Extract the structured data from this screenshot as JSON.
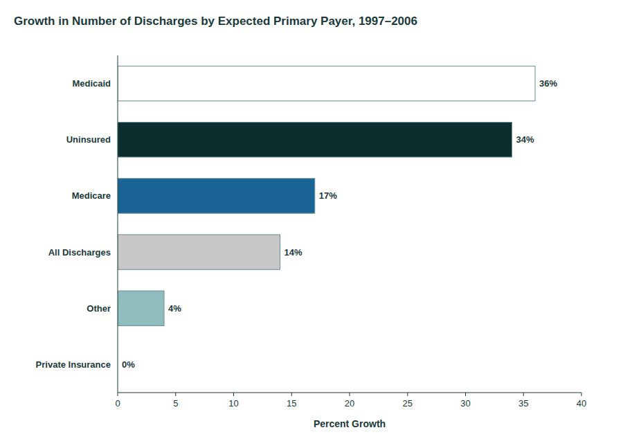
{
  "chart_data": {
    "type": "bar",
    "orientation": "horizontal",
    "title": "Growth in Number of Discharges by Expected Primary Payer, 1997–2006",
    "categories": [
      "Private Insurance",
      "Other",
      "All Discharges",
      "Medicare",
      "Uninsured",
      "Medicaid"
    ],
    "values": [
      0,
      4,
      14,
      17,
      34,
      36
    ],
    "value_labels": [
      "0%",
      "4%",
      "14%",
      "17%",
      "34%",
      "36%"
    ],
    "data_labels": true,
    "colors": [
      "#ffffff",
      "#8fbcbc",
      "#c8c8c8",
      "#1a6496",
      "#0d2e2e",
      "#ffffff"
    ],
    "xlabel": "Percent Growth",
    "xlim": [
      0,
      40
    ],
    "xticks": [
      0,
      5,
      10,
      15,
      20,
      25,
      30,
      35,
      40
    ],
    "grid": false
  }
}
